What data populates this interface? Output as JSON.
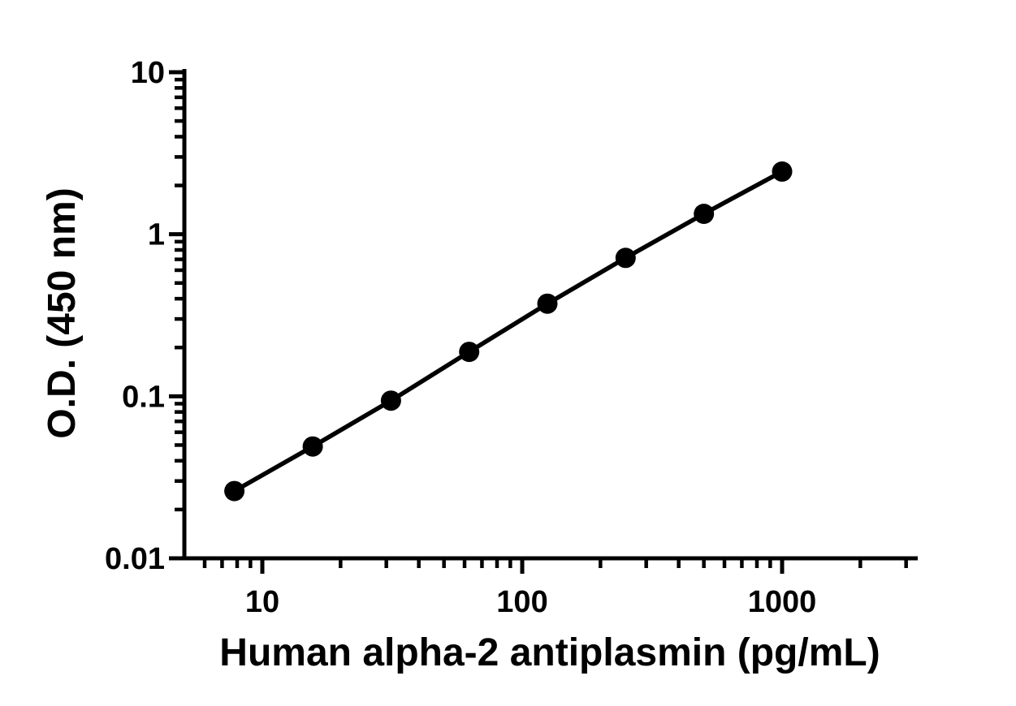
{
  "figure": {
    "background": "#ffffff",
    "foreground": "#000000"
  },
  "chart_data": {
    "type": "line",
    "title": "",
    "xlabel": "Human alpha-2 antiplasmin (pg/mL)",
    "ylabel": "O.D. (450 nm)",
    "x_scale": "log10",
    "y_scale": "log10",
    "xlim": [
      5,
      3500
    ],
    "ylim": [
      0.01,
      10
    ],
    "grid": false,
    "legend": false,
    "x_major_ticks": [
      {
        "value": 10,
        "label": "10"
      },
      {
        "value": 100,
        "label": "100"
      },
      {
        "value": 1000,
        "label": "1000"
      }
    ],
    "y_major_ticks": [
      {
        "value": 0.01,
        "label": "0.01"
      },
      {
        "value": 0.1,
        "label": "0.1"
      },
      {
        "value": 1,
        "label": "1"
      },
      {
        "value": 10,
        "label": "10"
      }
    ],
    "minor_tick_mantissas": [
      2,
      3,
      4,
      5,
      6,
      7,
      8,
      9
    ],
    "series": [
      {
        "name": "Human alpha-2 antiplasmin standard curve",
        "marker": "circle",
        "color": "#000000",
        "x": [
          7.81,
          15.63,
          31.25,
          62.5,
          125,
          250,
          500,
          1000
        ],
        "y": [
          0.026,
          0.049,
          0.094,
          0.188,
          0.373,
          0.715,
          1.336,
          2.437
        ]
      }
    ]
  }
}
